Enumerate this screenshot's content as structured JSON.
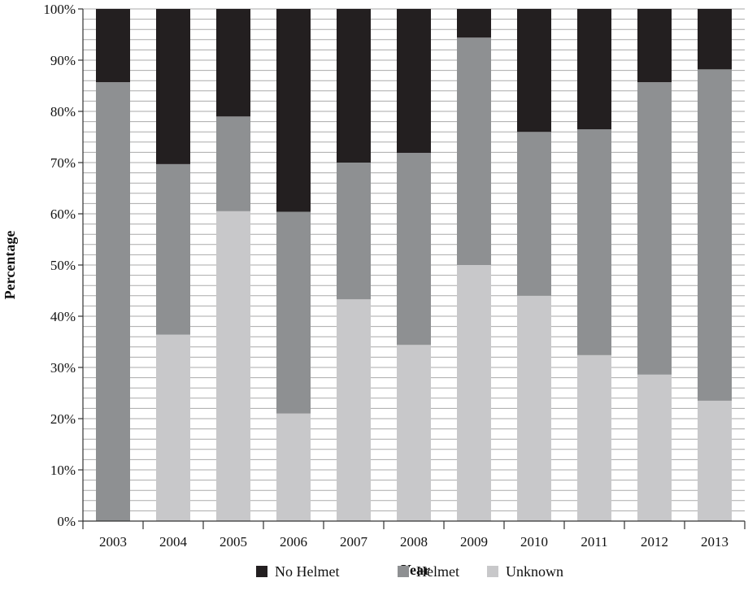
{
  "chart_data": {
    "type": "bar",
    "stacked": true,
    "normalized": true,
    "title": "",
    "xlabel": "Year",
    "ylabel": "Percentage",
    "ylim": [
      0,
      100
    ],
    "y_ticks": [
      "0%",
      "10%",
      "20%",
      "30%",
      "40%",
      "50%",
      "60%",
      "70%",
      "80%",
      "90%",
      "100%"
    ],
    "grid": "horizontal, every 2%",
    "legend_position": "bottom",
    "categories": [
      "2003",
      "2004",
      "2005",
      "2006",
      "2007",
      "2008",
      "2009",
      "2010",
      "2011",
      "2012",
      "2013"
    ],
    "series": [
      {
        "name": "Unknown",
        "color": "#c8c8ca",
        "values": [
          0,
          36.4,
          60.5,
          21,
          43.3,
          34.4,
          50,
          44,
          32.4,
          28.6,
          23.5
        ]
      },
      {
        "name": "Helmet",
        "color": "#8e9092",
        "values": [
          85.7,
          33.3,
          18.5,
          39.4,
          26.7,
          37.5,
          44.4,
          32,
          44.1,
          57.1,
          64.7
        ]
      },
      {
        "name": "No Helmet",
        "color": "#231f20",
        "values": [
          14.3,
          30.3,
          21,
          39.6,
          30,
          28.1,
          5.6,
          24,
          23.5,
          14.3,
          11.8
        ]
      }
    ],
    "legend_order": [
      "No Helmet",
      "Helmet",
      "Unknown"
    ]
  }
}
